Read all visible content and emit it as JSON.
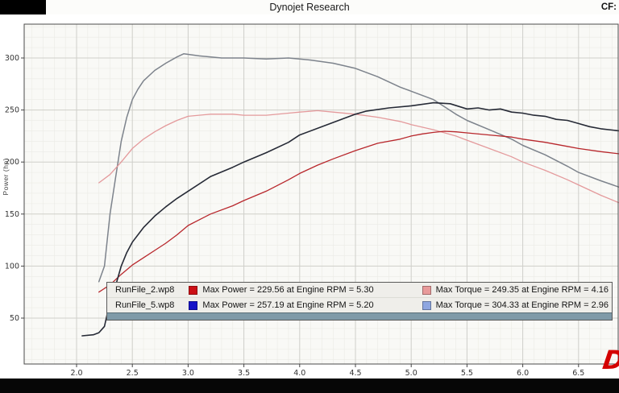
{
  "header": {
    "title": "Dynojet Research",
    "cf_label": "CF:"
  },
  "logo": {
    "text": "D",
    "color": "#d40000"
  },
  "legend": {
    "rows": [
      {
        "file": "RunFile_2.wp8",
        "power_color": "#cc1016",
        "power_text": "Max Power = 229.56 at Engine RPM = 5.30",
        "torque_color": "#e89a9a",
        "torque_text": "Max Torque = 249.35 at Engine RPM = 4.16"
      },
      {
        "file": "RunFile_5.wp8",
        "power_color": "#1512c8",
        "power_text": "Max Power = 257.19 at Engine RPM = 5.20",
        "torque_color": "#8ea6e0",
        "torque_text": "Max Torque = 304.33 at Engine RPM = 2.96"
      }
    ]
  },
  "chart_data": {
    "type": "line",
    "title": "",
    "xlabel": "",
    "ylabel": "Power (hp)",
    "x_range": [
      1.53,
      6.86
    ],
    "y_range": [
      6,
      332
    ],
    "grid": {
      "on": true,
      "major_color": "#cfcfca",
      "minor_color": "#ebebe5"
    },
    "x_tick_values": [
      2.0,
      2.5,
      3.0,
      3.5,
      4.0,
      4.5,
      5.0,
      5.5,
      6.0,
      6.5
    ],
    "x_tick_labels": [
      "2.0",
      "2.5",
      "3.0",
      "3.5",
      "4.0",
      "4.5",
      "5.0",
      "5.5",
      "6.0",
      "6.5"
    ],
    "y_tick_values": [
      50,
      100,
      150,
      200,
      250,
      300
    ],
    "legend_position": "overlay-bottom",
    "series": [
      {
        "name": "RunFile_5.wp8 Torque",
        "color": "#7d838c",
        "width": 1.5,
        "max_label": "Max Torque = 304.33 at Engine RPM = 2.96",
        "points": [
          [
            2.2,
            85
          ],
          [
            2.25,
            100
          ],
          [
            2.3,
            150
          ],
          [
            2.35,
            185
          ],
          [
            2.4,
            220
          ],
          [
            2.45,
            243
          ],
          [
            2.5,
            260
          ],
          [
            2.55,
            270
          ],
          [
            2.6,
            278
          ],
          [
            2.7,
            288
          ],
          [
            2.8,
            295
          ],
          [
            2.9,
            301
          ],
          [
            2.96,
            304
          ],
          [
            3.1,
            302
          ],
          [
            3.3,
            300
          ],
          [
            3.5,
            300
          ],
          [
            3.7,
            299
          ],
          [
            3.9,
            300
          ],
          [
            4.1,
            298
          ],
          [
            4.3,
            295
          ],
          [
            4.5,
            290
          ],
          [
            4.7,
            282
          ],
          [
            4.9,
            272
          ],
          [
            5.0,
            268
          ],
          [
            5.2,
            260
          ],
          [
            5.4,
            246
          ],
          [
            5.5,
            240
          ],
          [
            5.7,
            231
          ],
          [
            5.9,
            222
          ],
          [
            6.0,
            216
          ],
          [
            6.2,
            207
          ],
          [
            6.4,
            196
          ],
          [
            6.5,
            190
          ],
          [
            6.7,
            182
          ],
          [
            6.86,
            176
          ]
        ]
      },
      {
        "name": "RunFile_2.wp8 Torque",
        "color": "#e49a9c",
        "width": 1.3,
        "max_label": "Max Torque = 249.35 at Engine RPM = 4.16",
        "points": [
          [
            2.2,
            180
          ],
          [
            2.3,
            188
          ],
          [
            2.4,
            200
          ],
          [
            2.5,
            213
          ],
          [
            2.6,
            222
          ],
          [
            2.7,
            229
          ],
          [
            2.8,
            235
          ],
          [
            2.9,
            240
          ],
          [
            3.0,
            244
          ],
          [
            3.2,
            246
          ],
          [
            3.4,
            246
          ],
          [
            3.5,
            245
          ],
          [
            3.7,
            245
          ],
          [
            3.9,
            247
          ],
          [
            4.0,
            248
          ],
          [
            4.16,
            249.4
          ],
          [
            4.3,
            248
          ],
          [
            4.5,
            246
          ],
          [
            4.7,
            243
          ],
          [
            4.9,
            239
          ],
          [
            5.0,
            236
          ],
          [
            5.2,
            231
          ],
          [
            5.4,
            225
          ],
          [
            5.5,
            221
          ],
          [
            5.7,
            213
          ],
          [
            5.9,
            205
          ],
          [
            6.0,
            200
          ],
          [
            6.2,
            192
          ],
          [
            6.4,
            183
          ],
          [
            6.5,
            178
          ],
          [
            6.7,
            168
          ],
          [
            6.86,
            161
          ]
        ]
      },
      {
        "name": "RunFile_2.wp8 Power",
        "color": "#b8272c",
        "width": 1.3,
        "max_label": "Max Power = 229.56 at Engine RPM = 5.30",
        "points": [
          [
            2.2,
            75
          ],
          [
            2.3,
            82
          ],
          [
            2.4,
            92
          ],
          [
            2.5,
            101
          ],
          [
            2.6,
            108
          ],
          [
            2.7,
            115
          ],
          [
            2.8,
            122
          ],
          [
            2.9,
            130
          ],
          [
            3.0,
            139
          ],
          [
            3.2,
            150
          ],
          [
            3.4,
            158
          ],
          [
            3.5,
            163
          ],
          [
            3.7,
            172
          ],
          [
            3.9,
            183
          ],
          [
            4.0,
            189
          ],
          [
            4.16,
            197
          ],
          [
            4.3,
            203
          ],
          [
            4.5,
            211
          ],
          [
            4.7,
            218
          ],
          [
            4.9,
            222
          ],
          [
            5.0,
            225
          ],
          [
            5.1,
            227
          ],
          [
            5.2,
            228.5
          ],
          [
            5.3,
            229.6
          ],
          [
            5.4,
            229
          ],
          [
            5.5,
            228
          ],
          [
            5.7,
            226
          ],
          [
            5.9,
            224
          ],
          [
            6.0,
            222
          ],
          [
            6.2,
            219
          ],
          [
            6.4,
            215
          ],
          [
            6.5,
            213
          ],
          [
            6.7,
            210
          ],
          [
            6.86,
            208
          ]
        ]
      },
      {
        "name": "RunFile_5.wp8 Power",
        "color": "#262a36",
        "width": 1.6,
        "max_label": "Max Power = 257.19 at Engine RPM = 5.20",
        "points": [
          [
            2.05,
            33
          ],
          [
            2.15,
            34
          ],
          [
            2.2,
            36
          ],
          [
            2.25,
            42
          ],
          [
            2.3,
            66
          ],
          [
            2.35,
            81
          ],
          [
            2.4,
            100
          ],
          [
            2.45,
            113
          ],
          [
            2.5,
            123
          ],
          [
            2.6,
            137
          ],
          [
            2.7,
            148
          ],
          [
            2.8,
            157
          ],
          [
            2.9,
            165
          ],
          [
            3.0,
            172
          ],
          [
            3.2,
            186
          ],
          [
            3.4,
            195
          ],
          [
            3.5,
            200
          ],
          [
            3.7,
            209
          ],
          [
            3.9,
            219
          ],
          [
            4.0,
            226
          ],
          [
            4.2,
            234
          ],
          [
            4.4,
            242
          ],
          [
            4.5,
            246
          ],
          [
            4.6,
            249
          ],
          [
            4.8,
            252
          ],
          [
            5.0,
            254
          ],
          [
            5.2,
            257
          ],
          [
            5.35,
            256
          ],
          [
            5.5,
            251
          ],
          [
            5.6,
            252
          ],
          [
            5.7,
            250
          ],
          [
            5.8,
            251
          ],
          [
            5.9,
            248
          ],
          [
            6.0,
            247
          ],
          [
            6.1,
            245
          ],
          [
            6.2,
            244
          ],
          [
            6.3,
            241
          ],
          [
            6.4,
            240
          ],
          [
            6.5,
            237
          ],
          [
            6.6,
            234
          ],
          [
            6.7,
            232
          ],
          [
            6.86,
            230
          ]
        ]
      }
    ]
  }
}
